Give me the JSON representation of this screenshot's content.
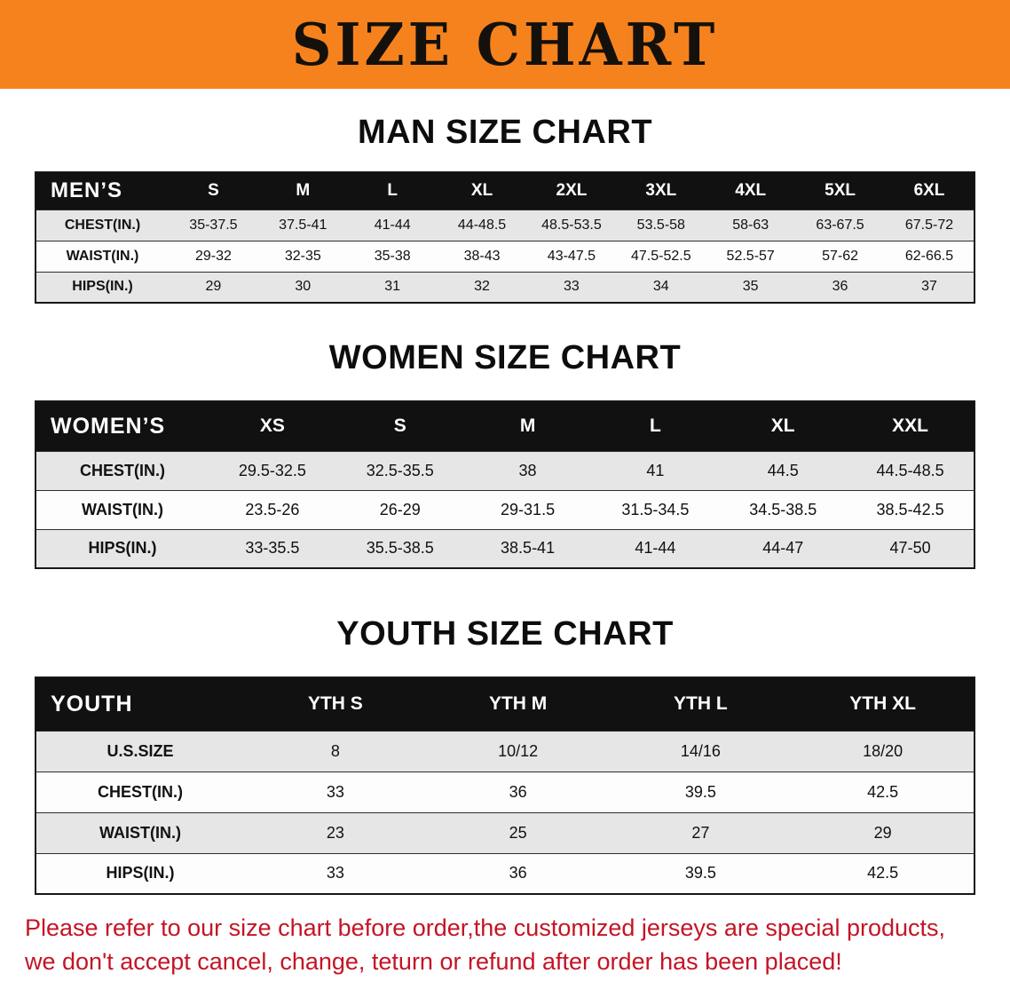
{
  "banner": {
    "title": "SIZE CHART"
  },
  "colors": {
    "banner-bg": "#f6821e",
    "header-bg": "#111111",
    "row-alt": "#e6e6e6",
    "footer-red": "#c41425"
  },
  "sections": [
    {
      "heading": "MAN SIZE CHART",
      "table": {
        "header": [
          "MEN’S",
          "S",
          "M",
          "L",
          "XL",
          "2XL",
          "3XL",
          "4XL",
          "5XL",
          "6XL"
        ],
        "rows": [
          [
            "CHEST(IN.)",
            "35-37.5",
            "37.5-41",
            "41-44",
            "44-48.5",
            "48.5-53.5",
            "53.5-58",
            "58-63",
            "63-67.5",
            "67.5-72"
          ],
          [
            "WAIST(IN.)",
            "29-32",
            "32-35",
            "35-38",
            "38-43",
            "43-47.5",
            "47.5-52.5",
            "52.5-57",
            "57-62",
            "62-66.5"
          ],
          [
            "HIPS(IN.)",
            "29",
            "30",
            "31",
            "32",
            "33",
            "34",
            "35",
            "36",
            "37"
          ]
        ]
      }
    },
    {
      "heading": "WOMEN SIZE CHART",
      "table": {
        "header": [
          "WOMEN’S",
          "XS",
          "S",
          "M",
          "L",
          "XL",
          "XXL"
        ],
        "rows": [
          [
            "CHEST(IN.)",
            "29.5-32.5",
            "32.5-35.5",
            "38",
            "41",
            "44.5",
            "44.5-48.5"
          ],
          [
            "WAIST(IN.)",
            "23.5-26",
            "26-29",
            "29-31.5",
            "31.5-34.5",
            "34.5-38.5",
            "38.5-42.5"
          ],
          [
            "HIPS(IN.)",
            "33-35.5",
            "35.5-38.5",
            "38.5-41",
            "41-44",
            "44-47",
            "47-50"
          ]
        ]
      }
    },
    {
      "heading": "YOUTH SIZE CHART",
      "table": {
        "header": [
          "YOUTH",
          "YTH S",
          "YTH M",
          "YTH L",
          "YTH XL"
        ],
        "rows": [
          [
            "U.S.SIZE",
            "8",
            "10/12",
            "14/16",
            "18/20"
          ],
          [
            "CHEST(IN.)",
            "33",
            "36",
            "39.5",
            "42.5"
          ],
          [
            "WAIST(IN.)",
            "23",
            "25",
            "27",
            "29"
          ],
          [
            "HIPS(IN.)",
            "33",
            "36",
            "39.5",
            "42.5"
          ]
        ]
      }
    }
  ],
  "footer": {
    "line1": "Please refer to our size chart before order,the customized jerseys are special products,",
    "line2": "we don't accept cancel, change, teturn or refund after order has been placed!"
  }
}
